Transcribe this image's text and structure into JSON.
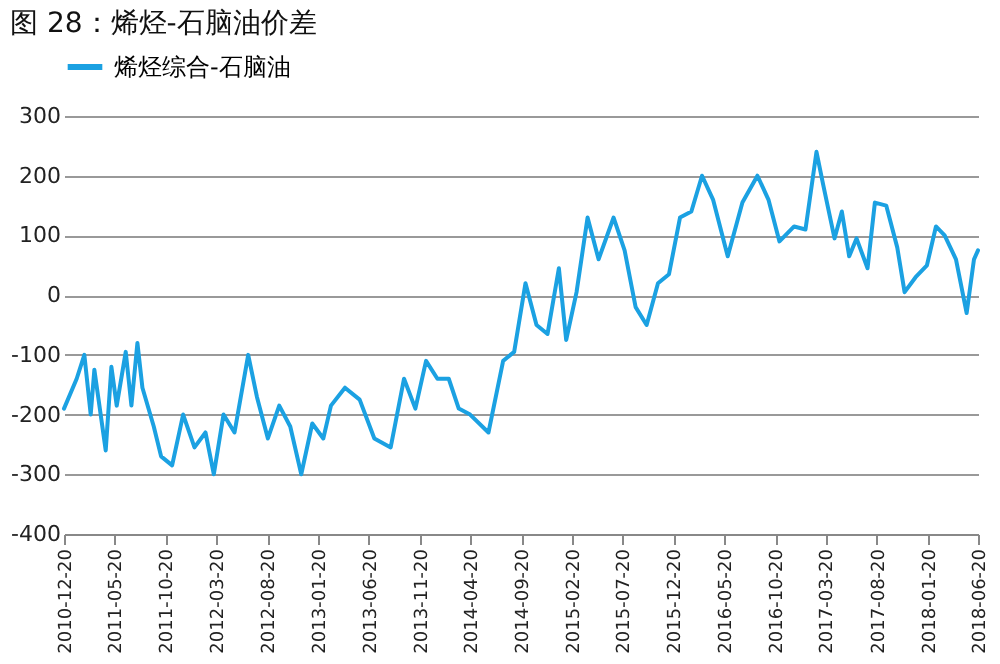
{
  "chart_data": {
    "type": "line",
    "title": "图 28：烯烃-石脑油价差",
    "legend": "top",
    "grid": "y",
    "x": [
      "2010-12-20",
      "2011-01-27",
      "2011-02-19",
      "2011-03-10",
      "2011-03-21",
      "2011-04-24",
      "2011-05-11",
      "2011-05-27",
      "2011-06-23",
      "2011-07-10",
      "2011-07-28",
      "2011-08-12",
      "2011-09-15",
      "2011-10-07",
      "2011-11-09",
      "2011-12-12",
      "2012-01-15",
      "2012-02-17",
      "2012-03-13",
      "2012-04-11",
      "2012-05-14",
      "2012-06-24",
      "2012-07-20",
      "2012-08-22",
      "2012-09-25",
      "2012-10-28",
      "2012-11-30",
      "2013-01-02",
      "2013-02-04",
      "2013-02-27",
      "2013-04-10",
      "2013-05-24",
      "2013-07-07",
      "2013-08-25",
      "2013-10-04",
      "2013-11-07",
      "2013-12-09",
      "2014-01-12",
      "2014-02-15",
      "2014-03-17",
      "2014-04-20",
      "2014-06-14",
      "2014-07-28",
      "2014-08-30",
      "2014-10-03",
      "2014-11-05",
      "2014-12-08",
      "2015-01-11",
      "2015-02-02",
      "2015-03-05",
      "2015-04-07",
      "2015-05-10",
      "2015-06-24",
      "2015-07-27",
      "2015-08-29",
      "2015-10-01",
      "2015-11-04",
      "2015-12-07",
      "2016-01-09",
      "2016-02-12",
      "2016-03-15",
      "2016-04-17",
      "2016-05-31",
      "2016-07-14",
      "2016-08-28",
      "2016-09-30",
      "2016-11-02",
      "2016-12-16",
      "2017-01-19",
      "2017-02-21",
      "2017-03-13",
      "2017-04-16",
      "2017-05-08",
      "2017-05-30",
      "2017-06-21",
      "2017-07-24",
      "2017-08-15",
      "2017-09-18",
      "2017-10-21",
      "2017-11-12",
      "2017-12-15",
      "2018-01-18",
      "2018-02-14",
      "2018-03-12",
      "2018-04-15",
      "2018-05-17",
      "2018-06-08",
      "2018-06-20"
    ],
    "series": [
      {
        "name": "烯烃综合-石脑油",
        "color": "#1ba1e2",
        "values": [
          -190,
          -140,
          -100,
          -200,
          -125,
          -260,
          -120,
          -185,
          -95,
          -185,
          -80,
          -155,
          -220,
          -270,
          -285,
          -200,
          -255,
          -230,
          -300,
          -200,
          -230,
          -100,
          -170,
          -240,
          -185,
          -220,
          -300,
          -215,
          -240,
          -185,
          -155,
          -175,
          -240,
          -255,
          -140,
          -190,
          -110,
          -140,
          -140,
          -190,
          -200,
          -230,
          -110,
          -95,
          20,
          -50,
          -65,
          45,
          -75,
          5,
          130,
          60,
          130,
          75,
          -20,
          -50,
          20,
          35,
          130,
          140,
          200,
          160,
          65,
          155,
          200,
          160,
          90,
          115,
          110,
          240,
          185,
          95,
          140,
          65,
          95,
          45,
          155,
          150,
          80,
          5,
          30,
          50,
          115,
          100,
          60,
          -30,
          60,
          75
        ]
      }
    ],
    "xlim": [
      "2010-12-20",
      "2018-06-20"
    ],
    "xticks": [
      "2010-12-20",
      "2011-05-20",
      "2011-10-20",
      "2012-03-20",
      "2012-08-20",
      "2013-01-20",
      "2013-06-20",
      "2013-11-20",
      "2014-04-20",
      "2014-09-20",
      "2015-02-20",
      "2015-07-20",
      "2015-12-20",
      "2016-05-20",
      "2016-10-20",
      "2017-03-20",
      "2017-08-20",
      "2018-01-20",
      "2018-06-20"
    ],
    "ylim": [
      -400,
      300
    ],
    "yticks": [
      -400,
      -300,
      -200,
      -100,
      0,
      100,
      200,
      300
    ]
  }
}
